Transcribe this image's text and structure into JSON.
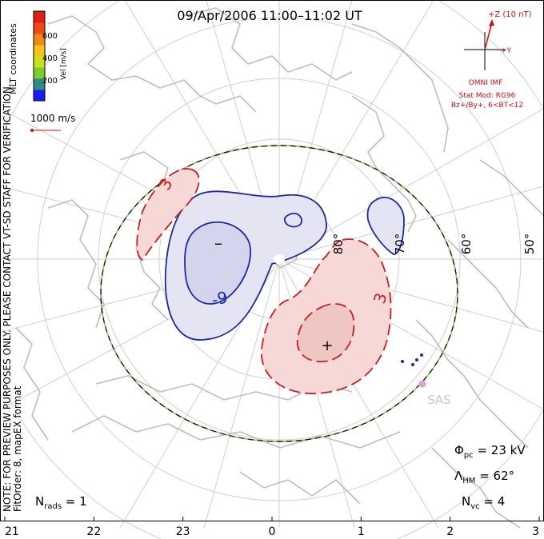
{
  "title": "09/Apr/2006 11:00–11:02 UT",
  "side_note": {
    "line1": "NOTE: FOR PREVIEW PURPOSES ONLY. PLEASE CONTACT VT-SD STAFF FOR VERIFICATION.",
    "line2": "FitOrder: 8, mapEX format"
  },
  "colorbar": {
    "label": "Vel [m/s]",
    "coord_label": "MLT coordinates",
    "ticks": [
      "600",
      "400",
      "200"
    ],
    "colors": [
      "#1a1aff",
      "#2f8a80",
      "#7ccf2a",
      "#c9e21b",
      "#f7c21a",
      "#f08a16",
      "#ee4a14",
      "#e01d12"
    ]
  },
  "ref_vector": {
    "label": "1000 m/s"
  },
  "imf": {
    "plus_z": "+Z (10 nT)",
    "plus_y": "+Y",
    "source": "OMNI IMF",
    "model1": "Stat Mod: RG96",
    "model2": "Bz+/By+, 6<BT<12"
  },
  "latitude_labels": [
    "80°",
    "70°",
    "60°",
    "50°"
  ],
  "contour_labels": {
    "pos": "3",
    "neg": "-9",
    "pos2": "3"
  },
  "extrema": {
    "min": "–",
    "max": "+"
  },
  "radar": {
    "name": "SAS"
  },
  "stats": {
    "phi_pc": {
      "sym": "Φ",
      "sub": "pc",
      "value": " = 23 kV"
    },
    "lambda_hm": {
      "sym": "Λ",
      "sub": "HM",
      "value": " = 62°"
    },
    "n_vc": {
      "sym": "N",
      "sub": "vc",
      "value": " = 4"
    },
    "n_rads": {
      "sym": "N",
      "sub": "rads",
      "value": " = 1"
    }
  },
  "mlt_axis": [
    "21",
    "22",
    "23",
    "0",
    "1",
    "2",
    "3"
  ],
  "colors": {
    "neg_fill": "#e4e4f2",
    "neg_line": "#1b2aa8",
    "pos_fill": "#f6d8d6",
    "pos_line": "#cc1f1f",
    "imf_red": "#d01010",
    "grid": "#cfcfcf",
    "coast": "#bdbdbd"
  }
}
